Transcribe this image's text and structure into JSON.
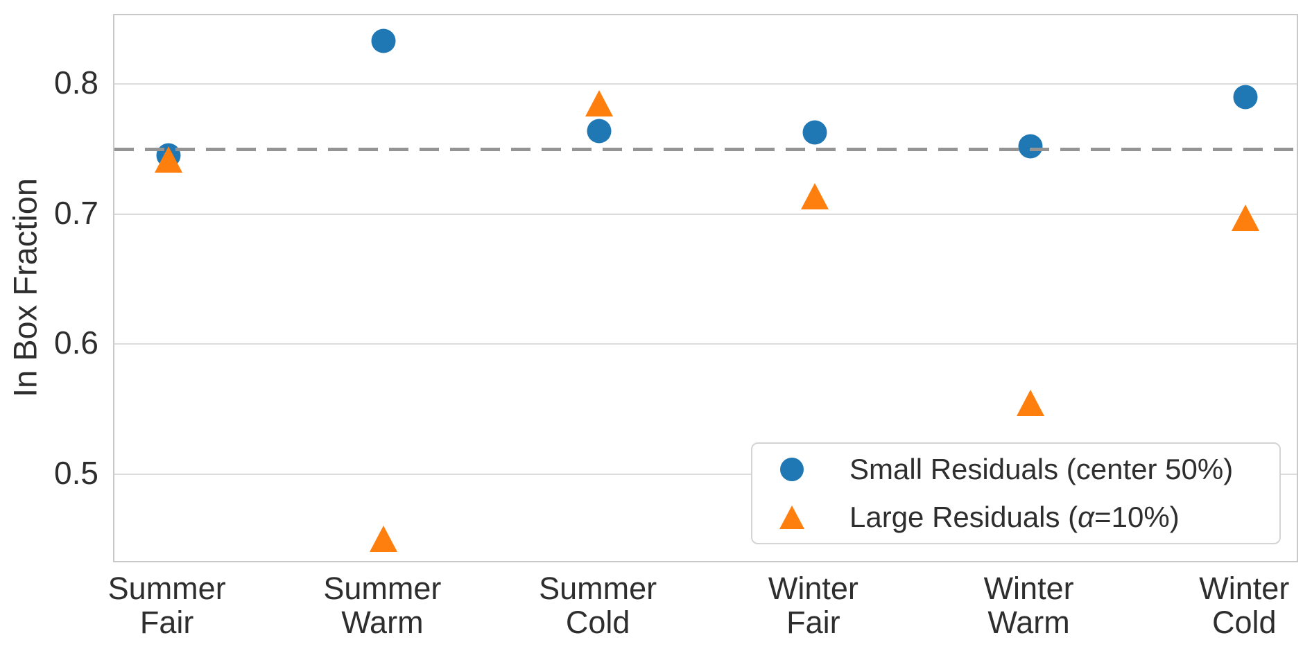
{
  "chart_data": {
    "type": "scatter",
    "title": "",
    "xlabel": "",
    "ylabel": "In Box Fraction",
    "categories": [
      "Summer\nFair",
      "Summer\nWarm",
      "Summer\nCold",
      "Winter\nFair",
      "Winter\nWarm",
      "Winter\nCold"
    ],
    "series": [
      {
        "name": "Small Residuals (center 50%)",
        "marker": "circle",
        "color": "#1f77b4",
        "values": [
          0.745,
          0.833,
          0.764,
          0.763,
          0.752,
          0.79
        ]
      },
      {
        "name": "Large Residuals (α=10%)",
        "marker": "triangle",
        "color": "#ff7f0e",
        "values": [
          0.742,
          0.45,
          0.785,
          0.714,
          0.555,
          0.697
        ]
      }
    ],
    "reference_line": {
      "y": 0.75,
      "style": "dashed",
      "color": "#949494"
    },
    "yticks": [
      0.5,
      0.6,
      0.7,
      0.8
    ],
    "ytick_labels": [
      "0.5",
      "0.6",
      "0.7",
      "0.8"
    ],
    "ylim": [
      0.431,
      0.853
    ],
    "xlim": [
      -0.25,
      5.25
    ],
    "grid": "horizontal",
    "grid_color": "#dcdcdc",
    "spine_color": "#c8c8c8",
    "legend": {
      "position": "lower right",
      "border_color": "#d4d4d4"
    }
  }
}
